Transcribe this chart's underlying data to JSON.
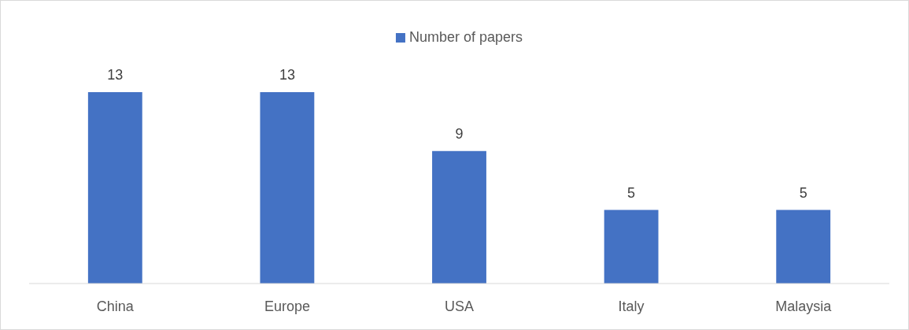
{
  "chart_data": {
    "type": "bar",
    "categories": [
      "China",
      "Europe",
      "USA",
      "Italy",
      "Malaysia"
    ],
    "series": [
      {
        "name": "Number of papers",
        "color": "#4472c4",
        "values": [
          13,
          13,
          9,
          5,
          5
        ]
      }
    ],
    "data_labels": true,
    "legend": "top"
  }
}
